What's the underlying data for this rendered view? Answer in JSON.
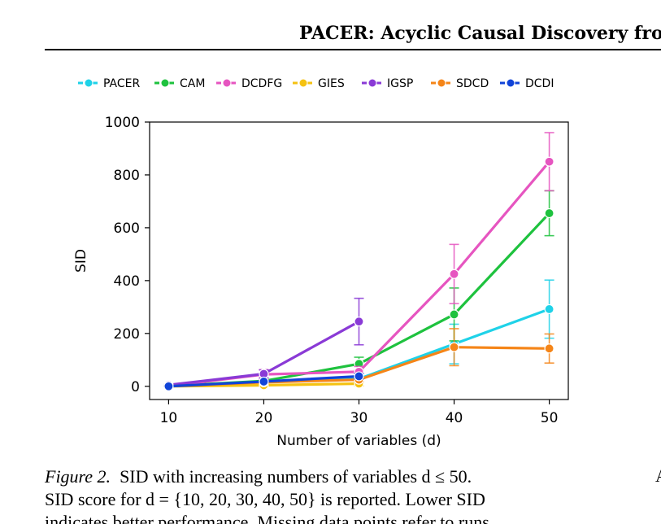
{
  "header": {
    "title": "PACER: Acyclic Causal Discovery from"
  },
  "chart_data": {
    "type": "line",
    "title": "",
    "xlabel": "Number of variables (d)",
    "ylabel": "SID",
    "x": [
      10,
      20,
      30,
      40,
      50
    ],
    "xticks": [
      "10",
      "20",
      "30",
      "40",
      "50"
    ],
    "yticks": [
      "0",
      "200",
      "400",
      "600",
      "800",
      "1000"
    ],
    "xlim": [
      8,
      52
    ],
    "ylim": [
      -50,
      1000
    ],
    "grid": false,
    "legend_position": "top",
    "series": [
      {
        "name": "PACER",
        "color": "#1fd2e8",
        "values": [
          0,
          18,
          28,
          160,
          292
        ],
        "errors": [
          2,
          5,
          10,
          75,
          110
        ]
      },
      {
        "name": "CAM",
        "color": "#1ec23e",
        "values": [
          1,
          20,
          85,
          272,
          655
        ],
        "errors": [
          2,
          5,
          25,
          100,
          85
        ]
      },
      {
        "name": "DCDFG",
        "color": "#e655c0",
        "values": [
          1,
          45,
          55,
          425,
          850
        ],
        "errors": [
          2,
          18,
          20,
          112,
          110
        ]
      },
      {
        "name": "GIES",
        "color": "#f5c211",
        "values": [
          0,
          4,
          10,
          null,
          null
        ],
        "errors": [
          1,
          3,
          8,
          null,
          null
        ]
      },
      {
        "name": "IGSP",
        "color": "#8a3ad6",
        "values": [
          5,
          47,
          245,
          null,
          null
        ],
        "errors": [
          3,
          15,
          88,
          null,
          null
        ]
      },
      {
        "name": "SDCD",
        "color": "#f58518",
        "values": [
          0,
          15,
          25,
          148,
          143
        ],
        "errors": [
          1,
          4,
          8,
          70,
          55
        ]
      },
      {
        "name": "DCDI",
        "color": "#1144d8",
        "values": [
          0,
          18,
          38,
          null,
          null
        ],
        "errors": [
          1,
          4,
          10,
          null,
          null
        ]
      }
    ]
  },
  "caption": {
    "label": "Figure 2.",
    "line1": "SID with increasing numbers of variables d ≤ 50.",
    "line2": "SID score for d = {10, 20, 30, 40, 50} is reported. Lower SID",
    "line3": "indicates better performance. Missing data points refer to runs"
  },
  "edge_fragment": "A"
}
